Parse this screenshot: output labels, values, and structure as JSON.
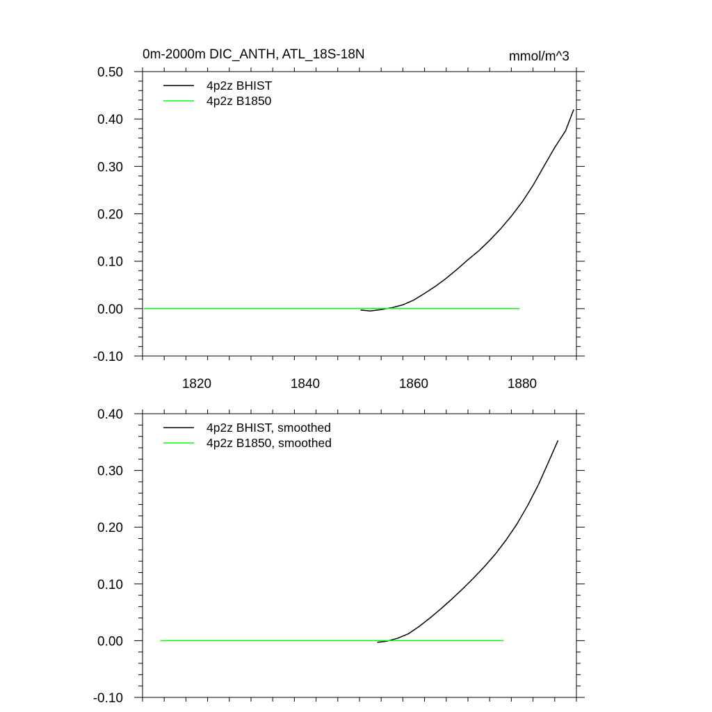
{
  "chart_data": [
    {
      "type": "line",
      "title": "0m-2000m DIC_ANTH, ATL_18S-18N",
      "units": "mmol/m^3",
      "xlim": [
        1810,
        1890
      ],
      "ylim": [
        -0.1,
        0.5
      ],
      "x_ticks": [
        1820,
        1840,
        1860,
        1880
      ],
      "x_tick_labels": [
        "1820",
        "1840",
        "1860",
        "1880"
      ],
      "y_ticks": [
        -0.1,
        0.0,
        0.1,
        0.2,
        0.3,
        0.4,
        0.5
      ],
      "y_tick_labels": [
        "-0.10",
        "0.00",
        "0.10",
        "0.20",
        "0.30",
        "0.40",
        "0.50"
      ],
      "legend_placement": "top-left",
      "series": [
        {
          "name": "4p2z BHIST",
          "color": "#000000",
          "x": [
            1850.2,
            1852,
            1854,
            1856,
            1858,
            1860,
            1862,
            1864,
            1866,
            1868,
            1870,
            1872,
            1874,
            1876,
            1878,
            1880,
            1882,
            1884,
            1886,
            1888,
            1889.5
          ],
          "y": [
            -0.003,
            -0.005,
            -0.002,
            0.002,
            0.008,
            0.018,
            0.032,
            0.047,
            0.064,
            0.083,
            0.103,
            0.122,
            0.144,
            0.168,
            0.195,
            0.225,
            0.26,
            0.3,
            0.34,
            0.375,
            0.42
          ]
        },
        {
          "name": "4p2z B1850",
          "color": "#00ff00",
          "x": [
            1810.2,
            1879.5
          ],
          "y": [
            0.0,
            0.0
          ]
        }
      ]
    },
    {
      "type": "line",
      "title": "",
      "xlim": [
        1810,
        1890
      ],
      "ylim": [
        -0.1,
        0.4
      ],
      "x_ticks": [
        1820,
        1840,
        1860,
        1880
      ],
      "x_tick_labels": [],
      "y_ticks": [
        -0.1,
        0.0,
        0.1,
        0.2,
        0.3,
        0.4
      ],
      "y_tick_labels": [
        "-0.10",
        "0.00",
        "0.10",
        "0.20",
        "0.30",
        "0.40"
      ],
      "legend_placement": "top-left",
      "series": [
        {
          "name": "4p2z BHIST, smoothed",
          "color": "#000000",
          "x": [
            1853.3,
            1855,
            1857,
            1859,
            1861,
            1863,
            1865,
            1867,
            1869,
            1871,
            1873,
            1875,
            1877,
            1879,
            1881,
            1883,
            1885,
            1886.6
          ],
          "y": [
            -0.003,
            -0.001,
            0.004,
            0.012,
            0.025,
            0.04,
            0.056,
            0.073,
            0.091,
            0.11,
            0.13,
            0.152,
            0.177,
            0.205,
            0.238,
            0.275,
            0.318,
            0.353
          ]
        },
        {
          "name": "4p2z B1850, smoothed",
          "color": "#00ff00",
          "x": [
            1813.3,
            1876.6
          ],
          "y": [
            0.0,
            0.0
          ]
        }
      ]
    }
  ]
}
